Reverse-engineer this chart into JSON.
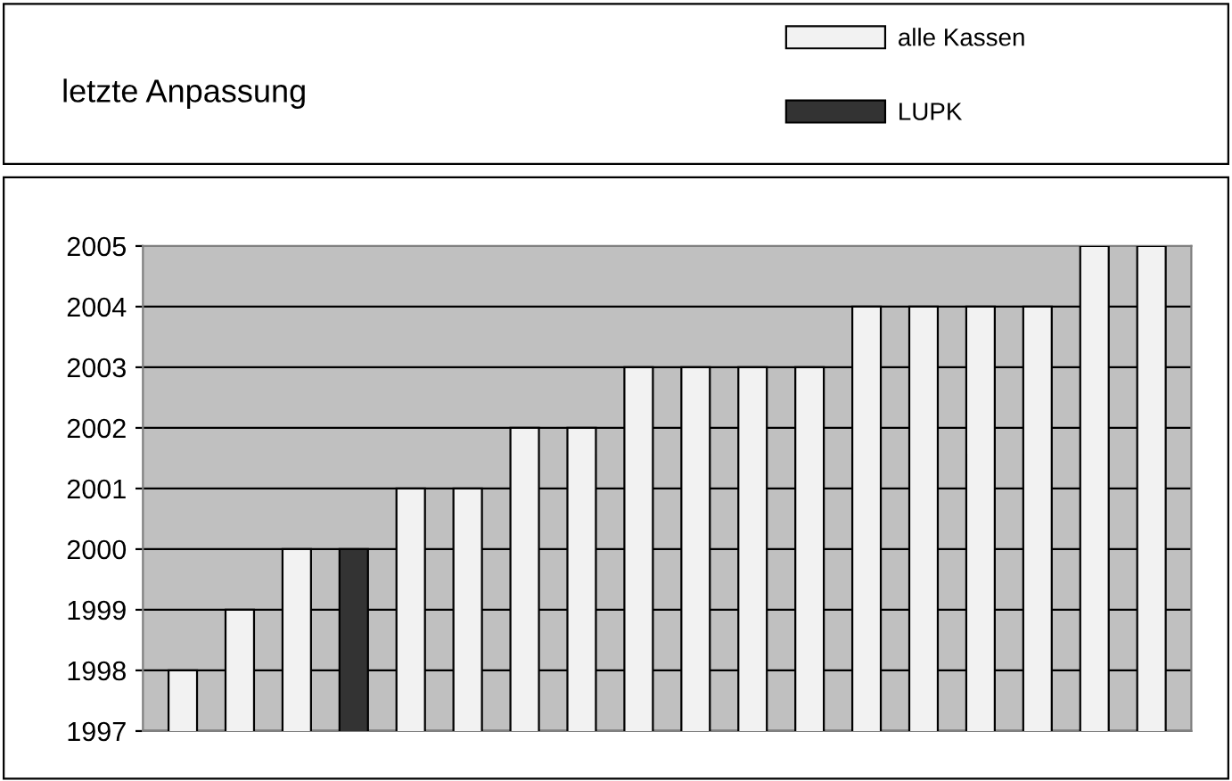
{
  "chart_data": {
    "type": "bar",
    "title": "letzte Anpassung",
    "categories": [
      null,
      null,
      null,
      null,
      null,
      null,
      null,
      null,
      null,
      null,
      null,
      null,
      null,
      null,
      null,
      null,
      null,
      null
    ],
    "series": [
      {
        "name": "alle Kassen",
        "color": "#f2f2f2",
        "values": [
          1998,
          1999,
          2000,
          null,
          2001,
          2001,
          2002,
          2002,
          2003,
          2003,
          2003,
          2003,
          2004,
          2004,
          2004,
          2004,
          2005,
          2005
        ]
      },
      {
        "name": "LUPK",
        "color": "#333333",
        "values": [
          null,
          null,
          null,
          2000,
          null,
          null,
          null,
          null,
          null,
          null,
          null,
          null,
          null,
          null,
          null,
          null,
          null,
          null
        ]
      }
    ],
    "ylim": [
      1997,
      2005
    ],
    "yticks": [
      1997,
      1998,
      1999,
      2000,
      2001,
      2002,
      2003,
      2004,
      2005
    ],
    "grid": "y",
    "legend": "top right",
    "tick_labels": "y"
  }
}
